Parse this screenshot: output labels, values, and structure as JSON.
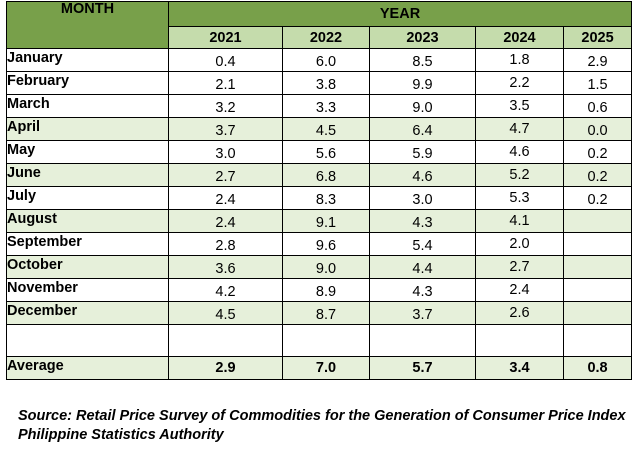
{
  "header": {
    "month_label": "MONTH",
    "year_label": "YEAR",
    "years": [
      "2021",
      "2022",
      "2023",
      "2024",
      "2025"
    ]
  },
  "rows": [
    {
      "month": "January",
      "values": [
        "0.4",
        "6.0",
        "8.5",
        "1.8",
        "2.9"
      ]
    },
    {
      "month": "February",
      "values": [
        "2.1",
        "3.8",
        "9.9",
        "2.2",
        "1.5"
      ]
    },
    {
      "month": "March",
      "values": [
        "3.2",
        "3.3",
        "9.0",
        "3.5",
        "0.6"
      ]
    },
    {
      "month": "April",
      "values": [
        "3.7",
        "4.5",
        "6.4",
        "4.7",
        "0.0"
      ]
    },
    {
      "month": "May",
      "values": [
        "3.0",
        "5.6",
        "5.9",
        "4.6",
        "0.2"
      ]
    },
    {
      "month": "June",
      "values": [
        "2.7",
        "6.8",
        "4.6",
        "5.2",
        "0.2"
      ]
    },
    {
      "month": "July",
      "values": [
        "2.4",
        "8.3",
        "3.0",
        "5.3",
        "0.2"
      ]
    },
    {
      "month": "August",
      "values": [
        "2.4",
        "9.1",
        "4.3",
        "4.1",
        ""
      ]
    },
    {
      "month": "September",
      "values": [
        "2.8",
        "9.6",
        "5.4",
        "2.0",
        ""
      ]
    },
    {
      "month": "October",
      "values": [
        "3.6",
        "9.0",
        "4.4",
        "2.7",
        ""
      ]
    },
    {
      "month": "November",
      "values": [
        "4.2",
        "8.9",
        "4.3",
        "2.4",
        ""
      ]
    },
    {
      "month": "December",
      "values": [
        "4.5",
        "8.7",
        "3.7",
        "2.6",
        ""
      ]
    }
  ],
  "average": {
    "label": "Average",
    "values": [
      "2.9",
      "7.0",
      "5.7",
      "3.4",
      "0.8"
    ]
  },
  "source": "Source: Retail Price Survey of Commodities for the Generation of Consumer Price Index Philippine Statistics Authority",
  "colors": {
    "header_green": "#78a04a",
    "year_row_green": "#c5dcac",
    "band_green": "#e6f0da"
  }
}
